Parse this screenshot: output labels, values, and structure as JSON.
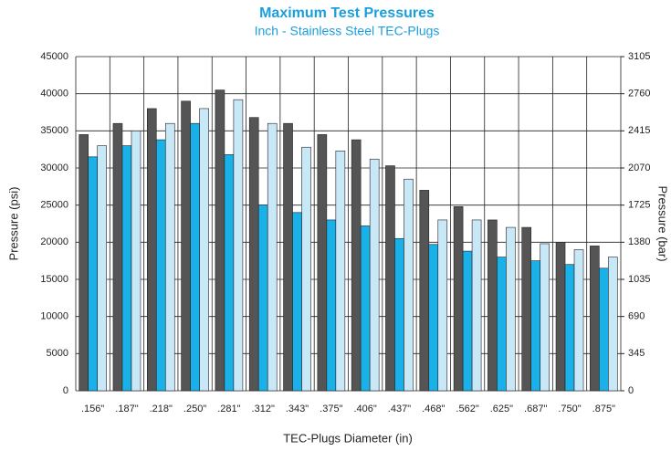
{
  "chart_data": {
    "type": "bar",
    "title": "Maximum Test Pressures",
    "subtitle": "Inch - Stainless Steel TEC-Plugs",
    "x_label": "TEC-Plugs Diameter (in)",
    "y_label": "Pressure (psi)",
    "y2_label": "Pressure (bar)",
    "categories": [
      ".156\"",
      ".187\"",
      ".218\"",
      ".250\"",
      ".281\"",
      ".312\"",
      ".343\"",
      ".375\"",
      ".406\"",
      ".437\"",
      ".468\"",
      ".562\"",
      ".625\"",
      ".687\"",
      ".750\"",
      ".875\""
    ],
    "series": [
      {
        "color": "#555555",
        "values": [
          34500,
          36000,
          38000,
          39000,
          40500,
          36800,
          36000,
          34500,
          33800,
          30300,
          27000,
          24800,
          23000,
          22000,
          20000,
          19500
        ]
      },
      {
        "color": "#1ab0e8",
        "values": [
          31500,
          33000,
          33800,
          36000,
          31800,
          25000,
          24000,
          23000,
          22200,
          20500,
          19700,
          18800,
          18000,
          17500,
          17000,
          16500
        ]
      },
      {
        "color": "#c8e8f8",
        "values": [
          33000,
          35000,
          36000,
          38000,
          39200,
          36000,
          32800,
          32300,
          31200,
          28500,
          23000,
          23000,
          22000,
          19800,
          19000,
          18000
        ]
      }
    ],
    "ylim": [
      0,
      45000
    ],
    "yticks": [
      0,
      5000,
      10000,
      15000,
      20000,
      25000,
      30000,
      35000,
      40000,
      45000
    ],
    "y2lim": [
      0,
      3105
    ],
    "y2ticks": [
      0,
      345,
      690,
      1035,
      1380,
      1725,
      2070,
      2415,
      2760,
      3105
    ],
    "grid": true
  }
}
